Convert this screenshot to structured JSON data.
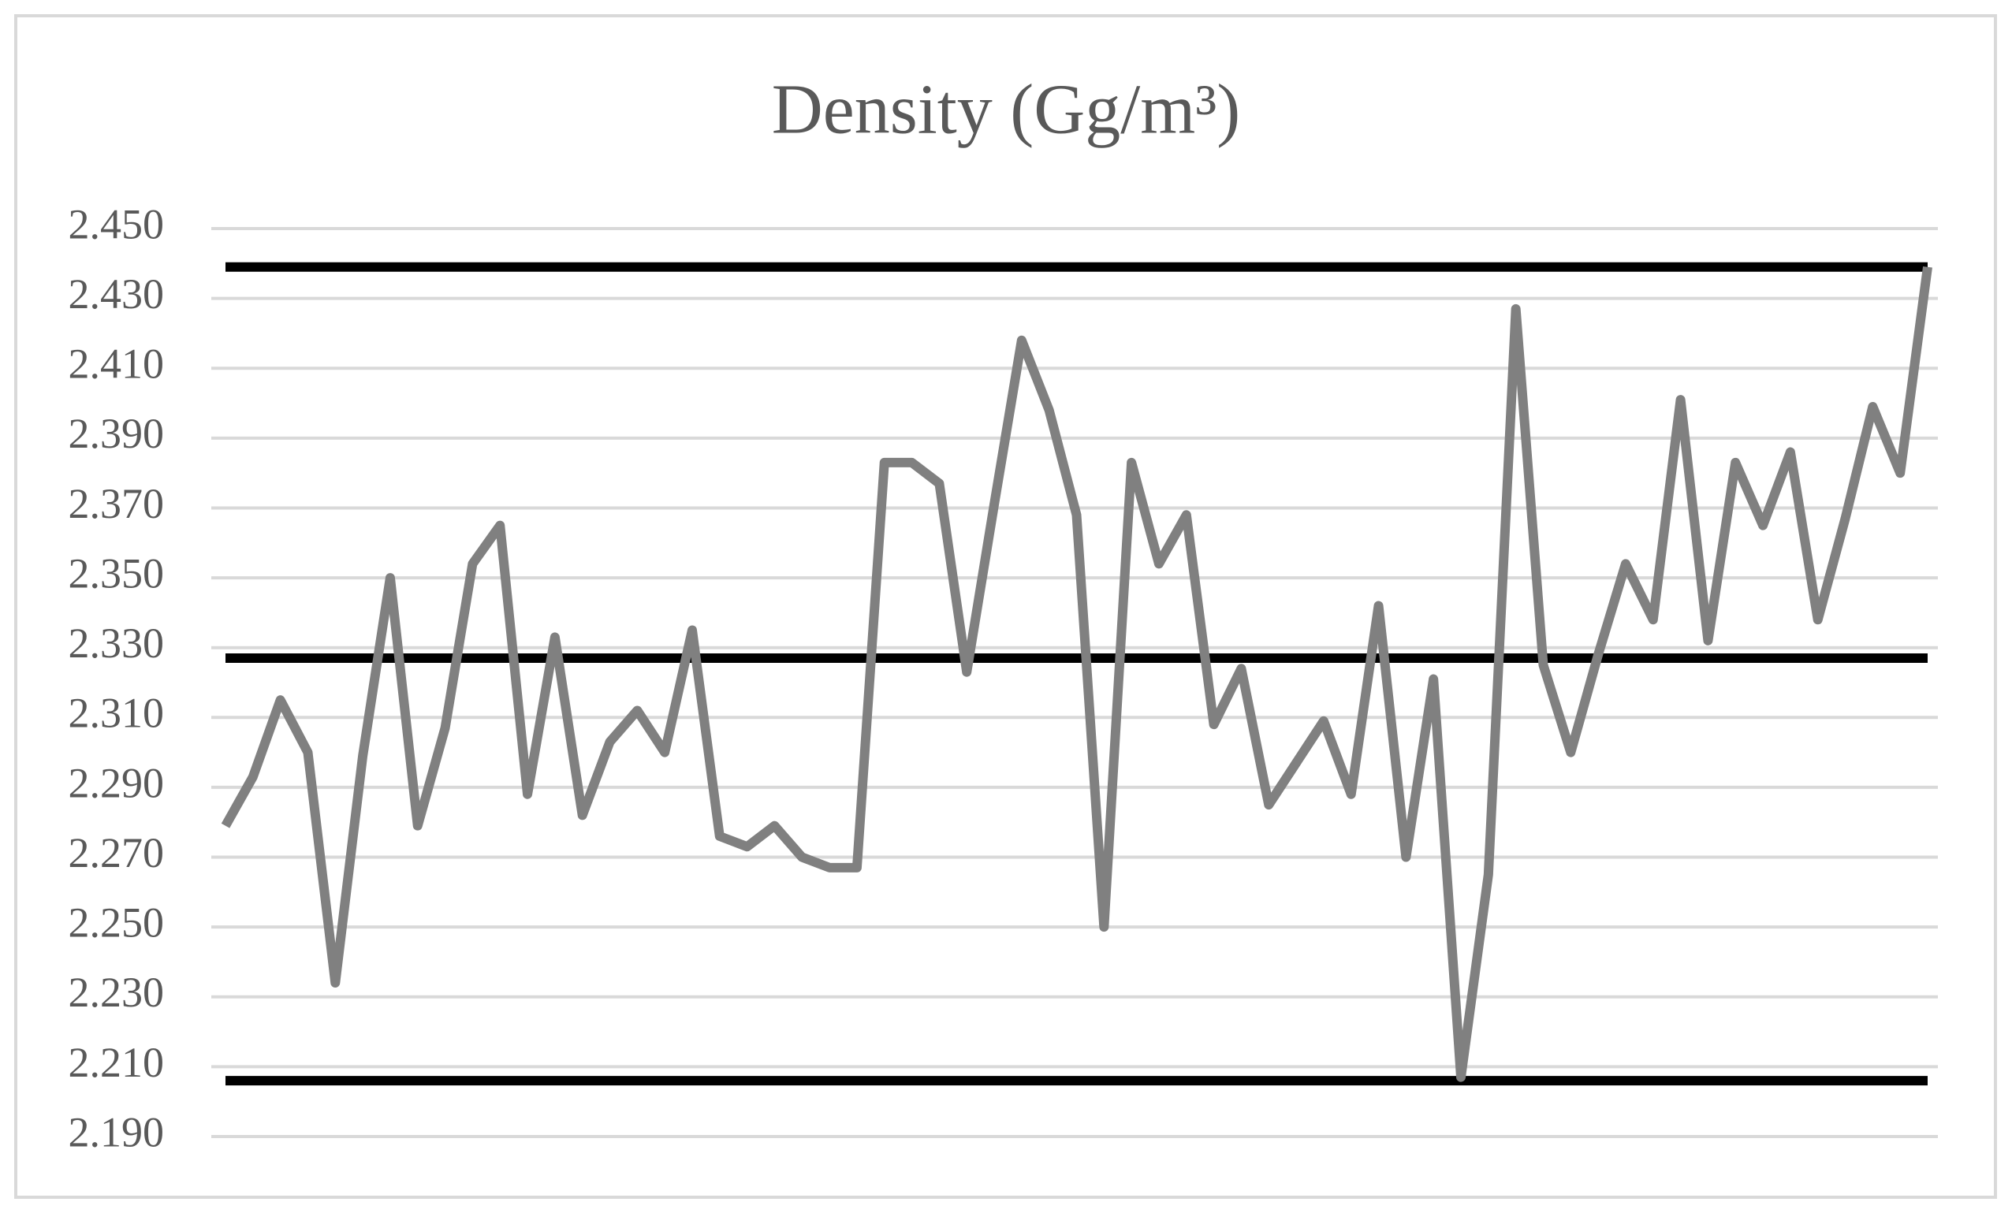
{
  "chart_data": {
    "type": "line",
    "title": "Density (Gg/m³)",
    "series": [
      {
        "color": "#808080",
        "values": [
          2.279,
          2.293,
          2.315,
          2.3,
          2.234,
          2.299,
          2.35,
          2.279,
          2.307,
          2.354,
          2.365,
          2.288,
          2.333,
          2.282,
          2.303,
          2.312,
          2.3,
          2.335,
          2.276,
          2.273,
          2.279,
          2.27,
          2.267,
          2.267,
          2.383,
          2.383,
          2.377,
          2.323,
          2.371,
          2.418,
          2.398,
          2.368,
          2.25,
          2.383,
          2.354,
          2.368,
          2.308,
          2.324,
          2.285,
          2.297,
          2.309,
          2.288,
          2.342,
          2.27,
          2.321,
          2.207,
          2.265,
          2.427,
          2.325,
          2.3,
          2.328,
          2.354,
          2.338,
          2.401,
          2.332,
          2.383,
          2.365,
          2.386,
          2.338,
          2.367,
          2.399,
          2.38,
          2.439
        ]
      }
    ],
    "reference_lines": [
      2.439,
      2.327,
      2.206
    ],
    "reference_color": "#000000",
    "ylim": [
      2.19,
      2.45
    ],
    "yticks": [
      {
        "value": 2.19,
        "label": "2.190"
      },
      {
        "value": 2.21,
        "label": "2.210"
      },
      {
        "value": 2.23,
        "label": "2.230"
      },
      {
        "value": 2.25,
        "label": "2.250"
      },
      {
        "value": 2.27,
        "label": "2.270"
      },
      {
        "value": 2.29,
        "label": "2.290"
      },
      {
        "value": 2.31,
        "label": "2.310"
      },
      {
        "value": 2.33,
        "label": "2.330"
      },
      {
        "value": 2.35,
        "label": "2.350"
      },
      {
        "value": 2.37,
        "label": "2.370"
      },
      {
        "value": 2.39,
        "label": "2.390"
      },
      {
        "value": 2.41,
        "label": "2.410"
      },
      {
        "value": 2.43,
        "label": "2.430"
      },
      {
        "value": 2.45,
        "label": "2.450"
      }
    ],
    "grid": true
  }
}
